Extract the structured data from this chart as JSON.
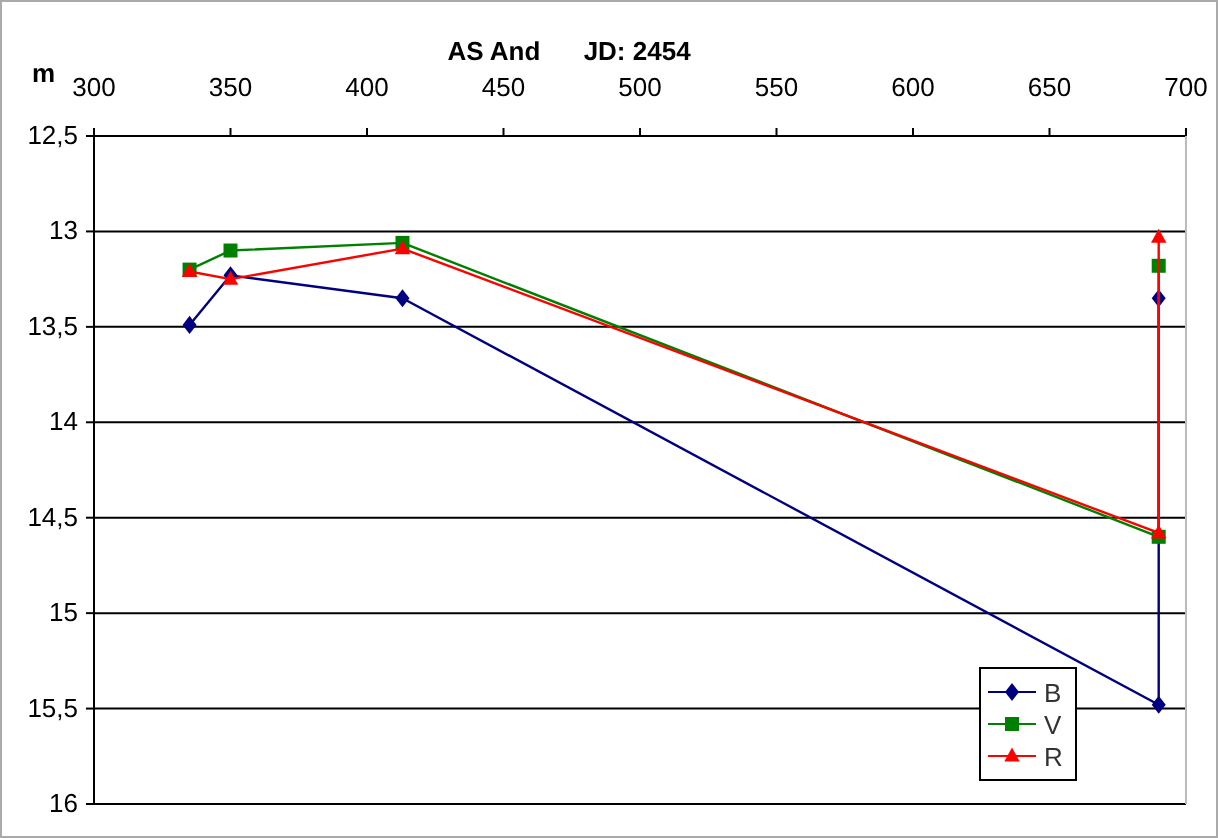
{
  "chart_data": {
    "type": "line",
    "title": "AS And      JD: 2454",
    "ylabel": "m",
    "xlim": [
      300,
      700
    ],
    "xticks": [
      300,
      350,
      400,
      450,
      500,
      550,
      600,
      650,
      700
    ],
    "ylim": [
      16,
      12.5
    ],
    "yticks": [
      {
        "value": 12.5,
        "label": "12,5"
      },
      13,
      {
        "value": 13.5,
        "label": "13,5"
      },
      14,
      {
        "value": 14.5,
        "label": "14,5"
      },
      15,
      {
        "value": 15.5,
        "label": "15,5"
      },
      16
    ],
    "grid": "y",
    "legend": "bottom right",
    "series": [
      {
        "name": "B",
        "color": "#000080",
        "marker": "diamond",
        "x": [
          335,
          350,
          413,
          690,
          690
        ],
        "values": [
          13.49,
          13.23,
          13.35,
          15.48,
          13.35
        ]
      },
      {
        "name": "V",
        "color": "#008000",
        "marker": "square",
        "x": [
          335,
          350,
          413,
          690,
          690
        ],
        "values": [
          13.2,
          13.1,
          13.06,
          14.6,
          13.18
        ]
      },
      {
        "name": "R",
        "color": "#ff0000",
        "marker": "triangle",
        "x": [
          335,
          350,
          413,
          690,
          690
        ],
        "values": [
          13.21,
          13.25,
          13.09,
          14.58,
          13.03
        ]
      }
    ]
  }
}
